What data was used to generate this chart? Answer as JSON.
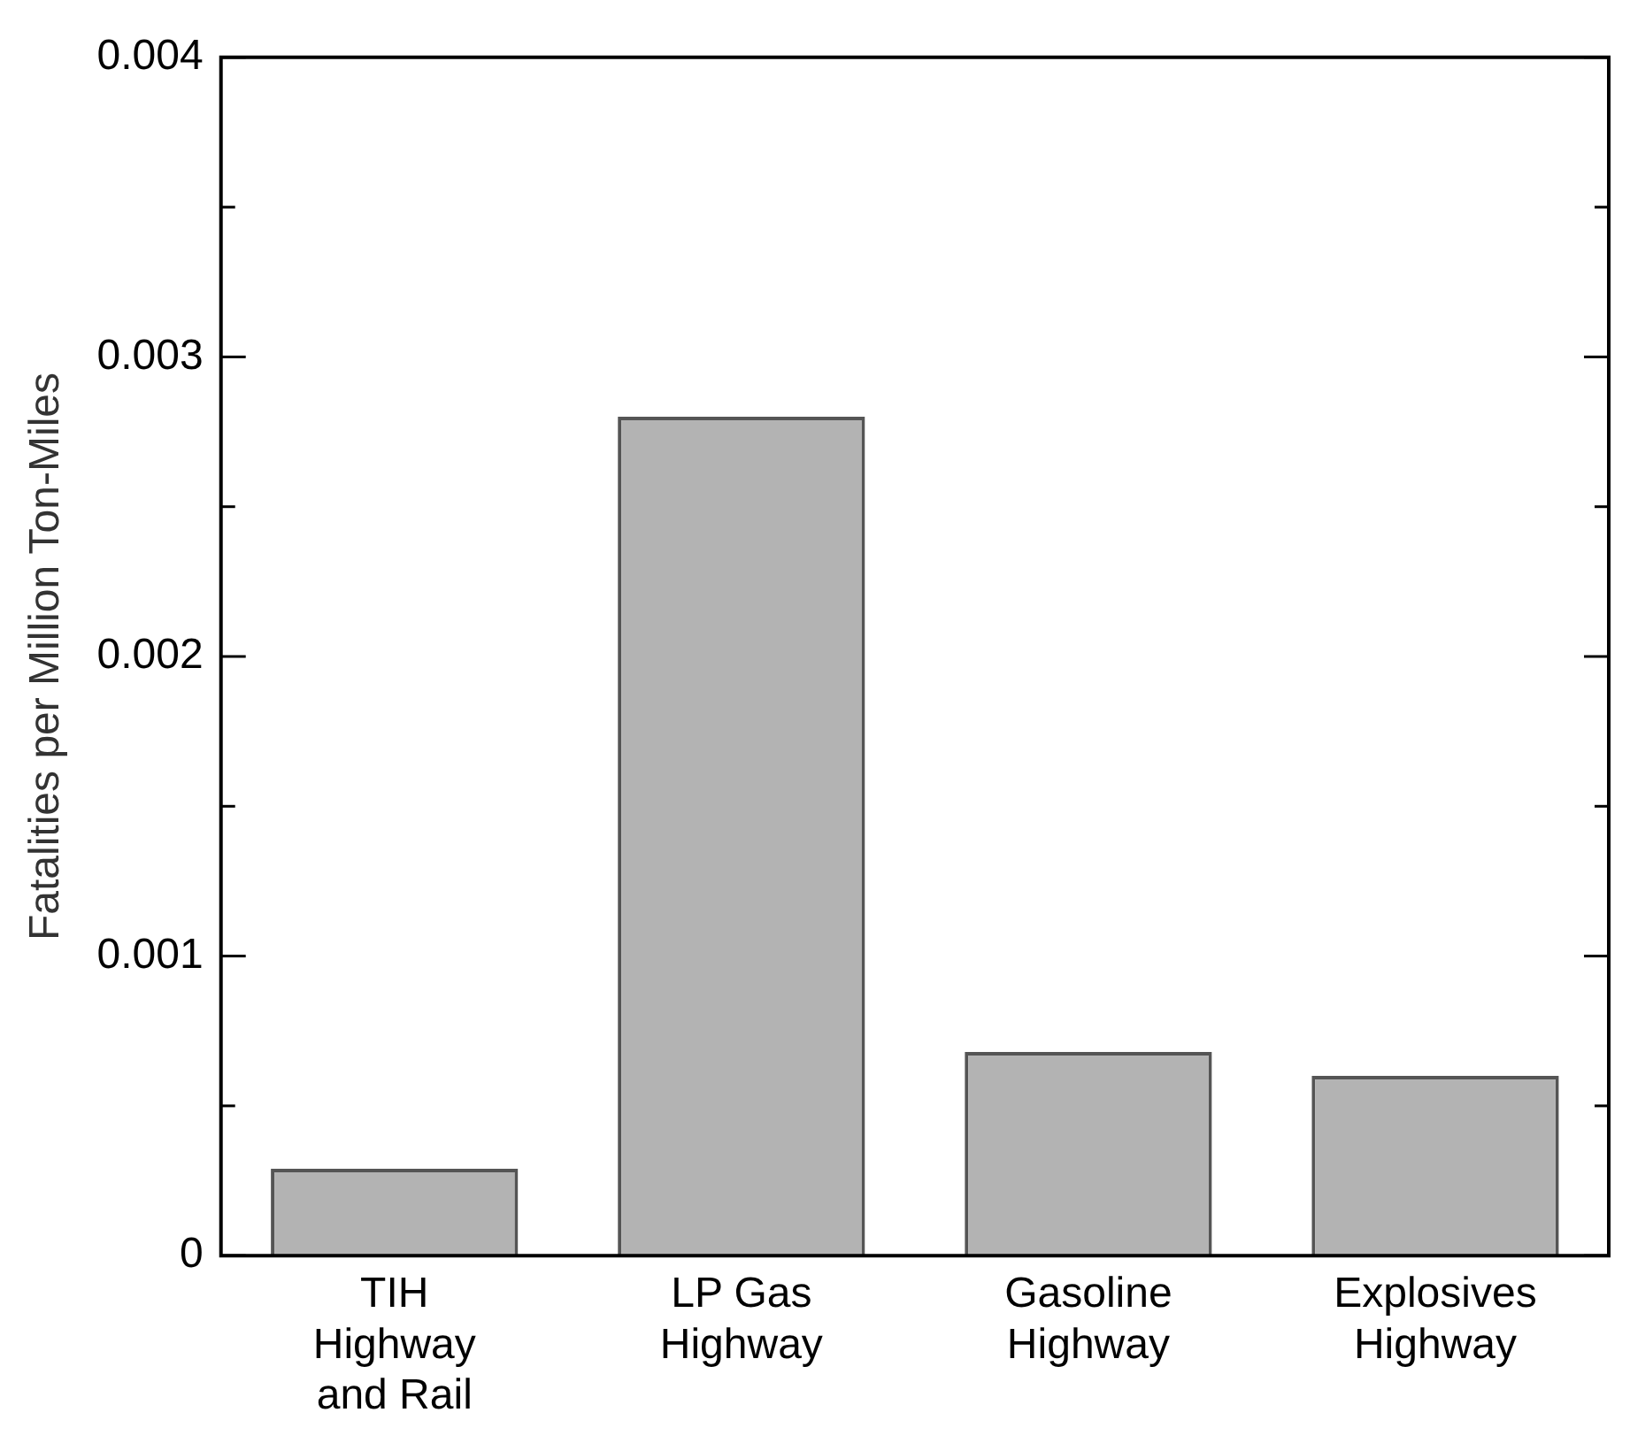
{
  "chart_data": {
    "type": "bar",
    "ylabel": "Fatalities per Million Ton-Miles",
    "categories": [
      "TIH\nHighway\nand Rail",
      "LP Gas\nHighway",
      "Gasoline\nHighway",
      "Explosives\nHighway"
    ],
    "values": [
      0.00029,
      0.0028,
      0.00068,
      0.0006
    ],
    "color": "#b3b3b3",
    "ylim": [
      0,
      0.004
    ],
    "yticks": [
      0,
      {
        "value": 0.0005,
        "label": null
      },
      0.001,
      {
        "value": 0.0015,
        "label": null
      },
      0.002,
      {
        "value": 0.0025,
        "label": null
      },
      0.003,
      {
        "value": 0.0035,
        "label": null
      },
      0.004
    ],
    "grid": false,
    "legend": false
  }
}
